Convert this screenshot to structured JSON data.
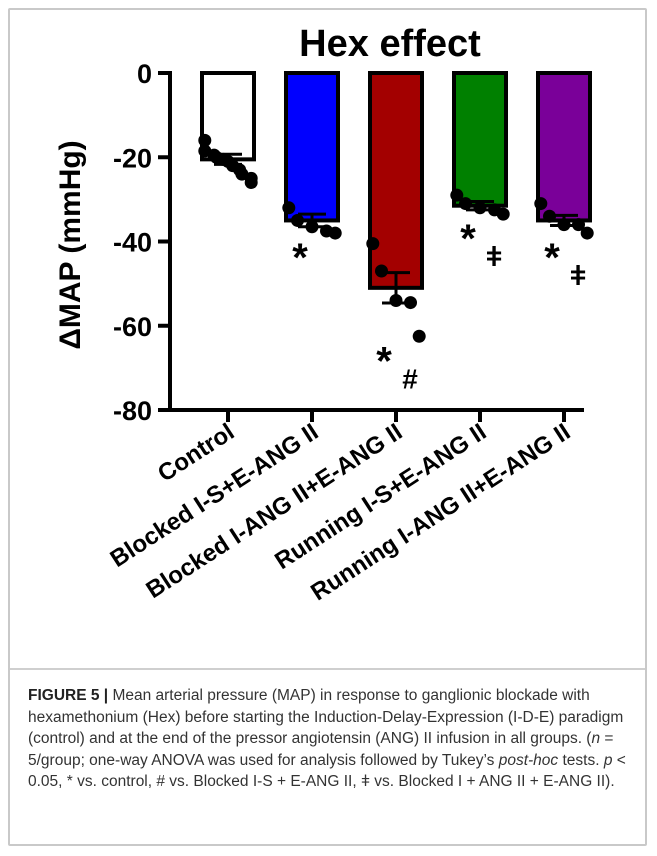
{
  "chart_data": {
    "type": "bar",
    "title": "Hex effect",
    "ylabel": "ΔMAP (mmHg)",
    "xlabel": "",
    "ylim": [
      -80,
      0
    ],
    "yticks": [
      0,
      -20,
      -40,
      -60,
      -80
    ],
    "ytick_labels": [
      "0",
      "-20",
      "-40",
      "-60",
      "-80"
    ],
    "categories": [
      "Control",
      "Blocked I-S+E-ANG II",
      "Blocked I-ANG II+E-ANG II",
      "Running I-S+E-ANG II",
      "Running I-ANG II+E-ANG II"
    ],
    "values": [
      -20.5,
      -35,
      -51,
      -31.5,
      -35
    ],
    "sem": [
      1.2,
      1.5,
      3.6,
      1.0,
      1.2
    ],
    "colors": [
      "#ffffff",
      "#0000ff",
      "#a30000",
      "#008000",
      "#7a0099"
    ],
    "points": [
      [
        -16,
        -18.5,
        -19.5,
        -20,
        -20.5,
        -21,
        -22,
        -23,
        -24,
        -25,
        -26
      ],
      [
        -32,
        -35,
        -36.5,
        -37.5,
        -38
      ],
      [
        -40.5,
        -47,
        -54,
        -54.5,
        -62.5
      ],
      [
        -29,
        -31,
        -32,
        -32.5,
        -33.5
      ],
      [
        -31,
        -34,
        -36,
        -36,
        -38
      ]
    ],
    "annotations": [
      {
        "category": 1,
        "text": "*"
      },
      {
        "category": 2,
        "text": "*#"
      },
      {
        "category": 3,
        "text": "*ǂ"
      },
      {
        "category": 4,
        "text": "*ǂ"
      }
    ],
    "grid": false,
    "legend": "none"
  },
  "caption": {
    "label": "FIGURE 5 |",
    "text_1": " Mean arterial pressure (MAP) in response to ganglionic blockade with hexamethonium (Hex) before starting the Induction-Delay-Expression (I-D-E) paradigm (control) and at the end of the pressor angiotensin (ANG) II infusion in all groups. (",
    "n_italic": "n",
    "text_2": " = 5/group; one-way ANOVA was used for analysis followed by Tukey’s ",
    "posthoc_italic": "post-hoc",
    "text_3": " tests. ",
    "p_italic": "p",
    "text_4": " < 0.05, * vs. control, # vs. Blocked I-S + E-ANG II, ǂ vs. Blocked I + ANG II + E-ANG II)."
  }
}
